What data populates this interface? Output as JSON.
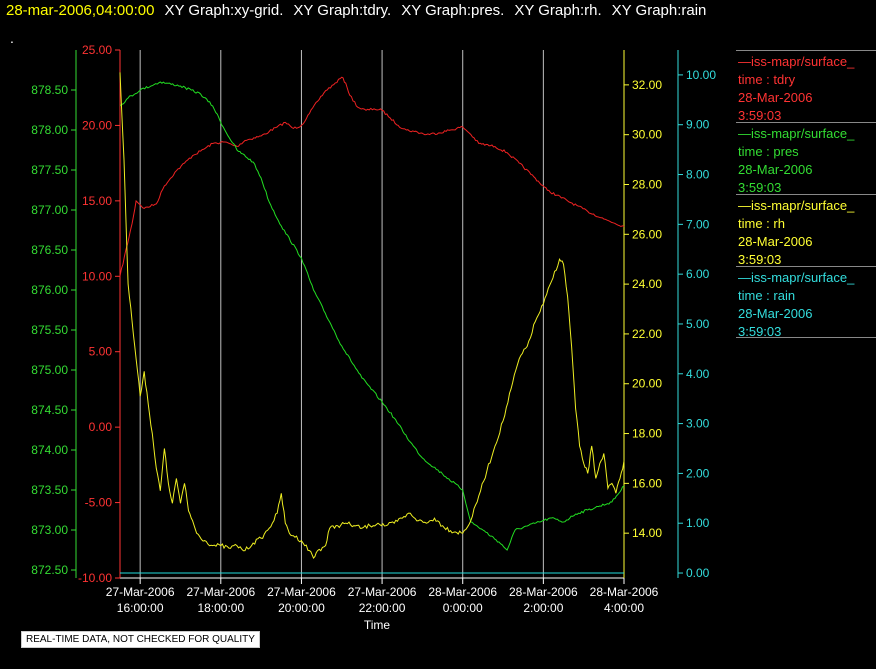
{
  "header": {
    "timestamp": "28-mar-2006,04:00:00",
    "graphs": [
      "XY Graph:xy-grid.",
      "XY Graph:tdry.",
      "XY Graph:pres.",
      "XY Graph:rh.",
      "XY Graph:rain"
    ],
    "dot": "."
  },
  "disclaimer": "REAL-TIME DATA, NOT CHECKED FOR QUALITY",
  "legend": [
    {
      "source": "—iss-mapr/surface_",
      "var": "time : tdry",
      "date": "28-Mar-2006",
      "time": "3:59:03",
      "color": "#ff3333"
    },
    {
      "source": "—iss-mapr/surface_",
      "var": "time : pres",
      "date": "28-Mar-2006",
      "time": "3:59:03",
      "color": "#33dd33"
    },
    {
      "source": "—iss-mapr/surface_",
      "var": "time : rh",
      "date": "28-Mar-2006",
      "time": "3:59:03",
      "color": "#ffff33"
    },
    {
      "source": "—iss-mapr/surface_",
      "var": "time : rain",
      "date": "28-Mar-2006",
      "time": "3:59:03",
      "color": "#33dddd"
    }
  ],
  "chart_data": {
    "type": "line",
    "xlabel": "Time",
    "xlim": [
      "27-Mar-2006 15:30:00",
      "28-Mar-2006 04:00:00"
    ],
    "x_ticks": [
      {
        "value": "27-Mar-2006 16:00:00",
        "line1": "27-Mar-2006",
        "line2": "16:00:00"
      },
      {
        "value": "27-Mar-2006 18:00:00",
        "line1": "27-Mar-2006",
        "line2": "18:00:00"
      },
      {
        "value": "27-Mar-2006 20:00:00",
        "line1": "27-Mar-2006",
        "line2": "20:00:00"
      },
      {
        "value": "27-Mar-2006 22:00:00",
        "line1": "27-Mar-2006",
        "line2": "22:00:00"
      },
      {
        "value": "28-Mar-2006 00:00:00",
        "line1": "28-Mar-2006",
        "line2": "0:00:00"
      },
      {
        "value": "28-Mar-2006 02:00:00",
        "line1": "28-Mar-2006",
        "line2": "2:00:00"
      },
      {
        "value": "28-Mar-2006 04:00:00",
        "line1": "28-Mar-2006",
        "line2": "4:00:00"
      }
    ],
    "grid": "vertical",
    "axes": [
      {
        "id": "pres",
        "side": "left-outer",
        "color": "#33dd33",
        "ylim": [
          872.4,
          879.0
        ],
        "ticks": [
          "872.50",
          "873.00",
          "873.50",
          "874.00",
          "874.50",
          "875.00",
          "875.50",
          "876.00",
          "876.50",
          "877.00",
          "877.50",
          "878.00",
          "878.50"
        ]
      },
      {
        "id": "tdry",
        "side": "left-inner",
        "color": "#ff3333",
        "ylim": [
          -10,
          25
        ],
        "ticks": [
          "-10.00",
          "-5.00",
          "0.00",
          "5.00",
          "10.00",
          "15.00",
          "20.00",
          "25.00"
        ]
      },
      {
        "id": "rh",
        "side": "right-inner",
        "color": "#ffff33",
        "ylim": [
          12.2,
          33.4
        ],
        "ticks": [
          "14.00",
          "16.00",
          "18.00",
          "20.00",
          "22.00",
          "24.00",
          "26.00",
          "28.00",
          "30.00",
          "32.00"
        ]
      },
      {
        "id": "rain",
        "side": "right-outer",
        "color": "#33dddd",
        "ylim": [
          -0.1,
          10.5
        ],
        "ticks": [
          "0.00",
          "1.00",
          "2.00",
          "3.00",
          "4.00",
          "5.00",
          "6.00",
          "7.00",
          "8.00",
          "9.00",
          "10.00"
        ]
      }
    ],
    "series": [
      {
        "axis": "tdry",
        "color": "#ee2222",
        "points": [
          [
            "27-Mar-2006 15:30:00",
            10.0
          ],
          [
            "27-Mar-2006 15:48:00",
            13.5
          ],
          [
            "27-Mar-2006 15:54:00",
            15.0
          ],
          [
            "27-Mar-2006 16:06:00",
            14.5
          ],
          [
            "27-Mar-2006 16:24:00",
            14.8
          ],
          [
            "27-Mar-2006 16:36:00",
            16.0
          ],
          [
            "27-Mar-2006 16:54:00",
            17.0
          ],
          [
            "27-Mar-2006 17:06:00",
            17.5
          ],
          [
            "27-Mar-2006 17:18:00",
            18.0
          ],
          [
            "27-Mar-2006 17:30:00",
            18.3
          ],
          [
            "27-Mar-2006 17:48:00",
            18.8
          ],
          [
            "27-Mar-2006 18:06:00",
            18.9
          ],
          [
            "27-Mar-2006 18:24:00",
            18.6
          ],
          [
            "27-Mar-2006 18:36:00",
            19.0
          ],
          [
            "27-Mar-2006 19:00:00",
            19.3
          ],
          [
            "27-Mar-2006 19:12:00",
            19.6
          ],
          [
            "27-Mar-2006 19:24:00",
            19.9
          ],
          [
            "27-Mar-2006 19:36:00",
            20.2
          ],
          [
            "27-Mar-2006 19:48:00",
            19.8
          ],
          [
            "27-Mar-2006 20:00:00",
            20.0
          ],
          [
            "27-Mar-2006 20:12:00",
            20.8
          ],
          [
            "27-Mar-2006 20:24:00",
            21.6
          ],
          [
            "27-Mar-2006 20:36:00",
            22.3
          ],
          [
            "27-Mar-2006 20:48:00",
            22.7
          ],
          [
            "27-Mar-2006 21:00:00",
            23.2
          ],
          [
            "27-Mar-2006 21:06:00",
            22.8
          ],
          [
            "27-Mar-2006 21:12:00",
            22.0
          ],
          [
            "27-Mar-2006 21:24:00",
            21.2
          ],
          [
            "27-Mar-2006 21:36:00",
            21.0
          ],
          [
            "27-Mar-2006 21:48:00",
            21.1
          ],
          [
            "27-Mar-2006 22:00:00",
            21.0
          ],
          [
            "27-Mar-2006 22:12:00",
            20.5
          ],
          [
            "27-Mar-2006 22:24:00",
            20.0
          ],
          [
            "27-Mar-2006 22:36:00",
            19.7
          ],
          [
            "27-Mar-2006 22:48:00",
            19.6
          ],
          [
            "27-Mar-2006 23:06:00",
            19.4
          ],
          [
            "27-Mar-2006 23:24:00",
            19.5
          ],
          [
            "27-Mar-2006 23:42:00",
            19.7
          ],
          [
            "28-Mar-2006 00:00:00",
            19.9
          ],
          [
            "28-Mar-2006 00:12:00",
            19.4
          ],
          [
            "28-Mar-2006 00:24:00",
            18.8
          ],
          [
            "28-Mar-2006 00:48:00",
            18.6
          ],
          [
            "28-Mar-2006 01:06:00",
            18.2
          ],
          [
            "28-Mar-2006 01:24:00",
            17.5
          ],
          [
            "28-Mar-2006 01:48:00",
            16.5
          ],
          [
            "28-Mar-2006 02:06:00",
            15.7
          ],
          [
            "28-Mar-2006 02:36:00",
            15.0
          ],
          [
            "28-Mar-2006 03:06:00",
            14.3
          ],
          [
            "28-Mar-2006 03:30:00",
            13.8
          ],
          [
            "28-Mar-2006 04:00:00",
            13.3
          ]
        ]
      },
      {
        "axis": "pres",
        "color": "#22dd22",
        "points": [
          [
            "27-Mar-2006 15:30:00",
            878.3
          ],
          [
            "27-Mar-2006 15:42:00",
            878.4
          ],
          [
            "27-Mar-2006 16:00:00",
            878.5
          ],
          [
            "27-Mar-2006 16:30:00",
            878.6
          ],
          [
            "27-Mar-2006 17:00:00",
            878.55
          ],
          [
            "27-Mar-2006 17:30:00",
            878.45
          ],
          [
            "27-Mar-2006 17:48:00",
            878.3
          ],
          [
            "27-Mar-2006 18:06:00",
            878.0
          ],
          [
            "27-Mar-2006 18:24:00",
            877.75
          ],
          [
            "27-Mar-2006 18:48:00",
            877.6
          ],
          [
            "27-Mar-2006 19:00:00",
            877.4
          ],
          [
            "27-Mar-2006 19:12:00",
            877.1
          ],
          [
            "27-Mar-2006 19:30:00",
            876.8
          ],
          [
            "27-Mar-2006 20:00:00",
            876.4
          ],
          [
            "27-Mar-2006 20:18:00",
            876.0
          ],
          [
            "27-Mar-2006 20:42:00",
            875.6
          ],
          [
            "27-Mar-2006 21:00:00",
            875.3
          ],
          [
            "27-Mar-2006 21:30:00",
            874.9
          ],
          [
            "27-Mar-2006 22:00:00",
            874.6
          ],
          [
            "27-Mar-2006 22:18:00",
            874.4
          ],
          [
            "27-Mar-2006 22:42:00",
            874.1
          ],
          [
            "27-Mar-2006 23:00:00",
            873.9
          ],
          [
            "27-Mar-2006 23:30:00",
            873.7
          ],
          [
            "28-Mar-2006 00:00:00",
            873.5
          ],
          [
            "28-Mar-2006 00:12:00",
            873.1
          ],
          [
            "28-Mar-2006 00:30:00",
            873.0
          ],
          [
            "28-Mar-2006 00:54:00",
            872.85
          ],
          [
            "28-Mar-2006 01:06:00",
            872.75
          ],
          [
            "28-Mar-2006 01:18:00",
            873.0
          ],
          [
            "28-Mar-2006 01:36:00",
            873.05
          ],
          [
            "28-Mar-2006 01:54:00",
            873.1
          ],
          [
            "28-Mar-2006 02:12:00",
            873.15
          ],
          [
            "28-Mar-2006 02:30:00",
            873.1
          ],
          [
            "28-Mar-2006 02:48:00",
            873.2
          ],
          [
            "28-Mar-2006 03:06:00",
            873.25
          ],
          [
            "28-Mar-2006 03:24:00",
            873.3
          ],
          [
            "28-Mar-2006 03:42:00",
            873.35
          ],
          [
            "28-Mar-2006 04:00:00",
            873.55
          ]
        ]
      },
      {
        "axis": "rh",
        "color": "#eeee22",
        "points": [
          [
            "27-Mar-2006 15:30:00",
            32.5
          ],
          [
            "27-Mar-2006 15:36:00",
            29.0
          ],
          [
            "27-Mar-2006 15:42:00",
            24.0
          ],
          [
            "27-Mar-2006 15:48:00",
            22.5
          ],
          [
            "27-Mar-2006 15:54:00",
            21.0
          ],
          [
            "27-Mar-2006 16:00:00",
            19.5
          ],
          [
            "27-Mar-2006 16:06:00",
            20.5
          ],
          [
            "27-Mar-2006 16:12:00",
            19.2
          ],
          [
            "27-Mar-2006 16:18:00",
            18.0
          ],
          [
            "27-Mar-2006 16:24:00",
            16.6
          ],
          [
            "27-Mar-2006 16:30:00",
            15.7
          ],
          [
            "27-Mar-2006 16:36:00",
            17.4
          ],
          [
            "27-Mar-2006 16:42:00",
            16.0
          ],
          [
            "27-Mar-2006 16:48:00",
            15.2
          ],
          [
            "27-Mar-2006 16:54:00",
            16.2
          ],
          [
            "27-Mar-2006 17:00:00",
            15.2
          ],
          [
            "27-Mar-2006 17:06:00",
            16.0
          ],
          [
            "27-Mar-2006 17:12:00",
            14.9
          ],
          [
            "27-Mar-2006 17:18:00",
            14.5
          ],
          [
            "27-Mar-2006 17:24:00",
            14.0
          ],
          [
            "27-Mar-2006 17:36:00",
            13.7
          ],
          [
            "27-Mar-2006 17:48:00",
            13.5
          ],
          [
            "27-Mar-2006 18:00:00",
            13.5
          ],
          [
            "27-Mar-2006 18:12:00",
            13.4
          ],
          [
            "27-Mar-2006 18:24:00",
            13.5
          ],
          [
            "27-Mar-2006 18:36:00",
            13.3
          ],
          [
            "27-Mar-2006 18:48:00",
            13.6
          ],
          [
            "27-Mar-2006 19:00:00",
            13.8
          ],
          [
            "27-Mar-2006 19:12:00",
            14.2
          ],
          [
            "27-Mar-2006 19:24:00",
            14.8
          ],
          [
            "27-Mar-2006 19:30:00",
            15.6
          ],
          [
            "27-Mar-2006 19:36:00",
            14.4
          ],
          [
            "27-Mar-2006 19:42:00",
            14.0
          ],
          [
            "27-Mar-2006 19:48:00",
            13.9
          ],
          [
            "27-Mar-2006 20:00:00",
            13.7
          ],
          [
            "27-Mar-2006 20:12:00",
            13.3
          ],
          [
            "27-Mar-2006 20:18:00",
            13.0
          ],
          [
            "27-Mar-2006 20:24:00",
            13.3
          ],
          [
            "27-Mar-2006 20:36:00",
            13.5
          ],
          [
            "27-Mar-2006 20:42:00",
            14.2
          ],
          [
            "27-Mar-2006 20:54:00",
            14.3
          ],
          [
            "27-Mar-2006 21:06:00",
            14.4
          ],
          [
            "27-Mar-2006 21:18:00",
            14.3
          ],
          [
            "27-Mar-2006 21:30:00",
            14.2
          ],
          [
            "27-Mar-2006 21:42:00",
            14.3
          ],
          [
            "27-Mar-2006 21:54:00",
            14.4
          ],
          [
            "27-Mar-2006 22:06:00",
            14.3
          ],
          [
            "27-Mar-2006 22:18:00",
            14.4
          ],
          [
            "27-Mar-2006 22:30:00",
            14.6
          ],
          [
            "27-Mar-2006 22:42:00",
            14.8
          ],
          [
            "27-Mar-2006 22:54:00",
            14.5
          ],
          [
            "27-Mar-2006 23:06:00",
            14.4
          ],
          [
            "27-Mar-2006 23:18:00",
            14.6
          ],
          [
            "27-Mar-2006 23:30:00",
            14.3
          ],
          [
            "27-Mar-2006 23:42:00",
            14.1
          ],
          [
            "28-Mar-2006 00:00:00",
            14.0
          ],
          [
            "28-Mar-2006 00:12:00",
            14.5
          ],
          [
            "28-Mar-2006 00:24:00",
            15.5
          ],
          [
            "28-Mar-2006 00:36:00",
            16.5
          ],
          [
            "28-Mar-2006 00:48:00",
            17.5
          ],
          [
            "28-Mar-2006 01:00:00",
            18.5
          ],
          [
            "28-Mar-2006 01:12:00",
            19.8
          ],
          [
            "28-Mar-2006 01:24:00",
            21.0
          ],
          [
            "28-Mar-2006 01:36:00",
            21.5
          ],
          [
            "28-Mar-2006 01:48:00",
            22.5
          ],
          [
            "28-Mar-2006 02:00:00",
            23.2
          ],
          [
            "28-Mar-2006 02:12:00",
            24.1
          ],
          [
            "28-Mar-2006 02:24:00",
            25.0
          ],
          [
            "28-Mar-2006 02:30:00",
            24.8
          ],
          [
            "28-Mar-2006 02:36:00",
            23.5
          ],
          [
            "28-Mar-2006 02:42:00",
            21.5
          ],
          [
            "28-Mar-2006 02:48:00",
            19.0
          ],
          [
            "28-Mar-2006 02:54:00",
            17.5
          ],
          [
            "28-Mar-2006 03:00:00",
            16.8
          ],
          [
            "28-Mar-2006 03:06:00",
            16.4
          ],
          [
            "28-Mar-2006 03:12:00",
            17.5
          ],
          [
            "28-Mar-2006 03:18:00",
            16.2
          ],
          [
            "28-Mar-2006 03:24:00",
            16.8
          ],
          [
            "28-Mar-2006 03:30:00",
            17.2
          ],
          [
            "28-Mar-2006 03:36:00",
            15.8
          ],
          [
            "28-Mar-2006 03:42:00",
            16.0
          ],
          [
            "28-Mar-2006 03:48:00",
            15.6
          ],
          [
            "28-Mar-2006 03:54:00",
            16.2
          ],
          [
            "28-Mar-2006 04:00:00",
            16.9
          ]
        ]
      },
      {
        "axis": "rain",
        "color": "#22dddd",
        "points": [
          [
            "27-Mar-2006 15:30:00",
            0.0
          ],
          [
            "28-Mar-2006 04:00:00",
            0.0
          ]
        ]
      }
    ]
  }
}
